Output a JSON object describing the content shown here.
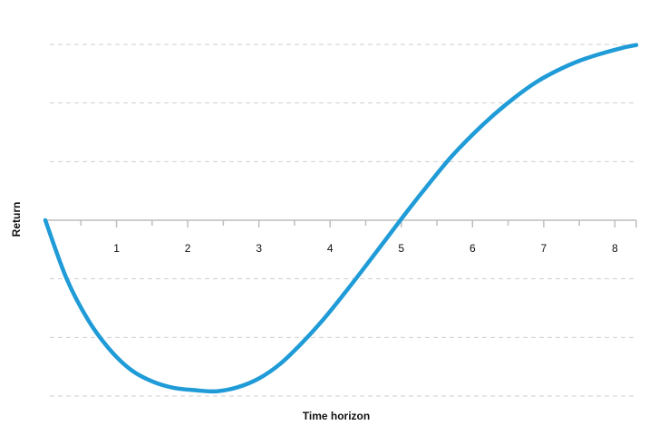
{
  "chart_data": {
    "type": "line",
    "title": "",
    "xlabel": "Time horizon",
    "ylabel": "Return",
    "x_ticks": [
      1,
      2,
      3,
      4,
      5,
      6,
      7,
      8
    ],
    "xlim": [
      0,
      8.3
    ],
    "ylim": [
      -3,
      3
    ],
    "grid": true,
    "line_color": "#1f9bd7",
    "series": [
      {
        "x": [
          0,
          0.3,
          0.6,
          0.9,
          1.2,
          1.5,
          1.8,
          2.1,
          2.4,
          2.7,
          3.0,
          3.3,
          3.6,
          3.9,
          4.2,
          4.5,
          4.8,
          5.1,
          5.4,
          5.7,
          6.0,
          6.3,
          6.6,
          6.9,
          7.2,
          7.5,
          7.8,
          8.1,
          8.3
        ],
        "y": [
          0,
          -1.0,
          -1.7,
          -2.2,
          -2.55,
          -2.75,
          -2.86,
          -2.9,
          -2.92,
          -2.85,
          -2.7,
          -2.45,
          -2.1,
          -1.7,
          -1.25,
          -0.78,
          -0.3,
          0.18,
          0.64,
          1.08,
          1.46,
          1.8,
          2.1,
          2.36,
          2.56,
          2.72,
          2.84,
          2.94,
          2.99
        ]
      }
    ]
  }
}
